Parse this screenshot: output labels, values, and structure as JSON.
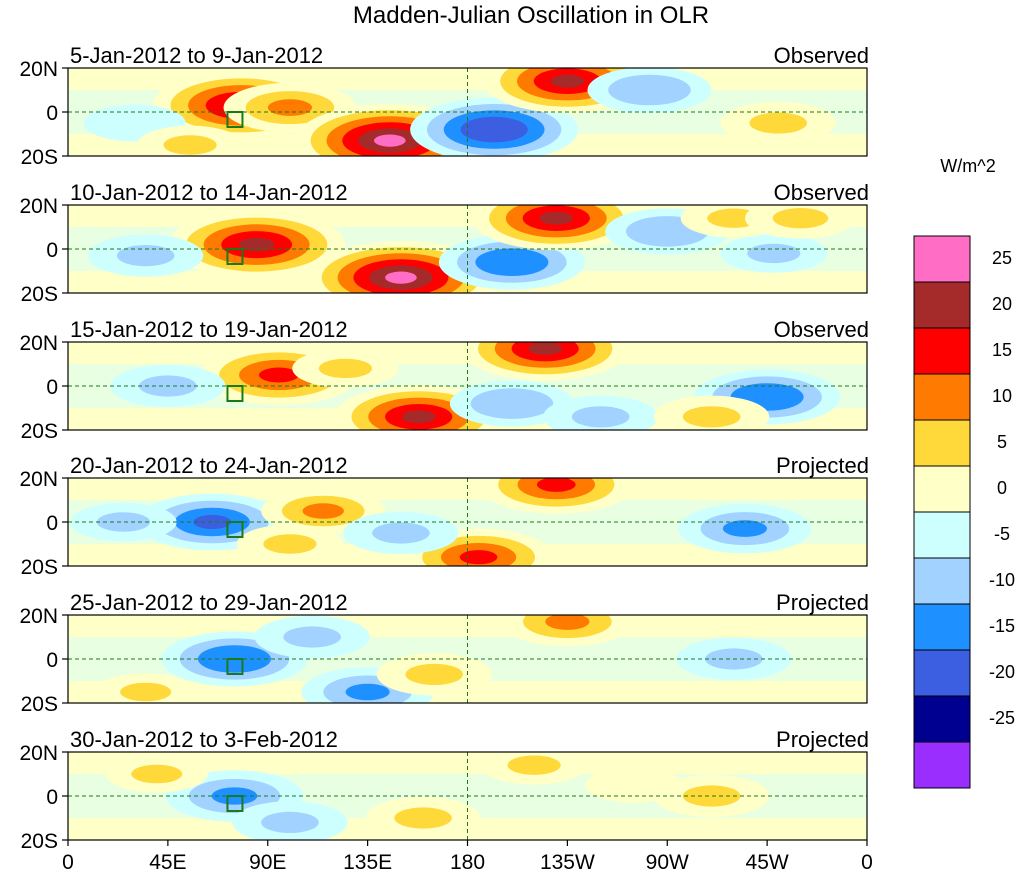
{
  "chart_data": {
    "type": "heatmap",
    "title": "Madden-Julian Oscillation in OLR",
    "units": "W/m^2",
    "x_ticks": [
      "0",
      "45E",
      "90E",
      "135E",
      "180",
      "135W",
      "90W",
      "45W",
      "0"
    ],
    "y_ticks": [
      "20N",
      "0",
      "20S"
    ],
    "colorbar": {
      "levels": [
        "25",
        "20",
        "15",
        "10",
        "5",
        "0",
        "-5",
        "-10",
        "-15",
        "-20",
        "-25"
      ],
      "colors": [
        "#ff6ec4",
        "#a52a2a",
        "#ff0000",
        "#ff7a00",
        "#ffd83a",
        "#ffffc8",
        "#ceffff",
        "#a2d2ff",
        "#1e90ff",
        "#3c5ee0",
        "#000090",
        "#9a2eff"
      ]
    },
    "panels": [
      {
        "period": "5-Jan-2012 to 9-Jan-2012",
        "type_label": "Observed",
        "anomalies": [
          {
            "lon": 78,
            "lat": 3,
            "value": 22
          },
          {
            "lon": 100,
            "lat": 2,
            "value": 12
          },
          {
            "lon": 145,
            "lat": -13,
            "value": 25
          },
          {
            "lon": 192,
            "lat": -8,
            "value": -20
          },
          {
            "lon": 225,
            "lat": 14,
            "value": 20
          },
          {
            "lon": 262,
            "lat": 10,
            "value": -10
          },
          {
            "lon": 30,
            "lat": -5,
            "value": -5
          },
          {
            "lon": 320,
            "lat": -5,
            "value": 8
          },
          {
            "lon": 55,
            "lat": -15,
            "value": 6
          }
        ]
      },
      {
        "period": "10-Jan-2012 to 14-Jan-2012",
        "type_label": "Observed",
        "anomalies": [
          {
            "lon": 85,
            "lat": 2,
            "value": 22
          },
          {
            "lon": 150,
            "lat": -13,
            "value": 25
          },
          {
            "lon": 200,
            "lat": -6,
            "value": -15
          },
          {
            "lon": 220,
            "lat": 14,
            "value": 20
          },
          {
            "lon": 35,
            "lat": -3,
            "value": -8
          },
          {
            "lon": 270,
            "lat": 8,
            "value": -10
          },
          {
            "lon": 318,
            "lat": -2,
            "value": -6
          },
          {
            "lon": 300,
            "lat": 14,
            "value": 6
          },
          {
            "lon": 330,
            "lat": 14,
            "value": 7
          }
        ]
      },
      {
        "period": "15-Jan-2012 to 19-Jan-2012",
        "type_label": "Observed",
        "anomalies": [
          {
            "lon": 95,
            "lat": 5,
            "value": 18
          },
          {
            "lon": 158,
            "lat": -14,
            "value": 20
          },
          {
            "lon": 215,
            "lat": 17,
            "value": 20
          },
          {
            "lon": 200,
            "lat": -8,
            "value": -10
          },
          {
            "lon": 45,
            "lat": 0,
            "value": -8
          },
          {
            "lon": 315,
            "lat": -5,
            "value": -15
          },
          {
            "lon": 240,
            "lat": -14,
            "value": -8
          },
          {
            "lon": 290,
            "lat": -14,
            "value": 8
          },
          {
            "lon": 125,
            "lat": 8,
            "value": 6
          }
        ]
      },
      {
        "period": "20-Jan-2012 to 24-Jan-2012",
        "type_label": "Projected",
        "anomalies": [
          {
            "lon": 65,
            "lat": 0,
            "value": -16
          },
          {
            "lon": 115,
            "lat": 5,
            "value": 10
          },
          {
            "lon": 185,
            "lat": -16,
            "value": 16
          },
          {
            "lon": 220,
            "lat": 17,
            "value": 17
          },
          {
            "lon": 305,
            "lat": -3,
            "value": -12
          },
          {
            "lon": 150,
            "lat": -5,
            "value": -8
          },
          {
            "lon": 100,
            "lat": -10,
            "value": 6
          },
          {
            "lon": 25,
            "lat": 0,
            "value": -6
          }
        ]
      },
      {
        "period": "25-Jan-2012 to 29-Jan-2012",
        "type_label": "Projected",
        "anomalies": [
          {
            "lon": 75,
            "lat": 0,
            "value": -15
          },
          {
            "lon": 135,
            "lat": -15,
            "value": -12
          },
          {
            "lon": 165,
            "lat": -7,
            "value": 8
          },
          {
            "lon": 225,
            "lat": 17,
            "value": 12
          },
          {
            "lon": 110,
            "lat": 10,
            "value": -8
          },
          {
            "lon": 300,
            "lat": 0,
            "value": -8
          },
          {
            "lon": 35,
            "lat": -15,
            "value": 5
          }
        ]
      },
      {
        "period": "30-Jan-2012 to 3-Feb-2012",
        "type_label": "Projected",
        "anomalies": [
          {
            "lon": 75,
            "lat": 0,
            "value": -13
          },
          {
            "lon": 100,
            "lat": -12,
            "value": -8
          },
          {
            "lon": 160,
            "lat": -10,
            "value": 8
          },
          {
            "lon": 210,
            "lat": 14,
            "value": 6
          },
          {
            "lon": 290,
            "lat": 0,
            "value": 8
          },
          {
            "lon": 40,
            "lat": 10,
            "value": 5
          },
          {
            "lon": 255,
            "lat": 5,
            "value": 4
          }
        ]
      }
    ]
  }
}
